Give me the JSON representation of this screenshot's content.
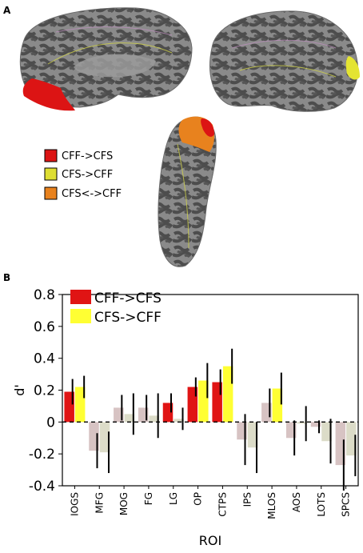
{
  "panels": {
    "a_label": "A",
    "b_label": "B"
  },
  "brain_legend": [
    {
      "label": "CFF->CFS",
      "color": "#e01010"
    },
    {
      "label": "CFS->CFF",
      "color": "#dede32"
    },
    {
      "label": "CFS<->CFF",
      "color": "#e8821e"
    }
  ],
  "chart_data": {
    "type": "bar",
    "categories": [
      "IOGS",
      "MFG",
      "MOG",
      "FG",
      "LG",
      "OP",
      "CTPS",
      "IPS",
      "MLOS",
      "AOS",
      "LOTS",
      "SPCS"
    ],
    "series": [
      {
        "name": "CFF->CFS",
        "color": "#e01414",
        "faded_color": "#d7c3c3",
        "values": [
          0.19,
          -0.18,
          0.09,
          0.09,
          0.12,
          0.22,
          0.25,
          -0.11,
          0.12,
          -0.1,
          -0.03,
          -0.27
        ],
        "errors": [
          0.08,
          0.11,
          0.08,
          0.08,
          0.06,
          0.06,
          0.08,
          0.16,
          0.09,
          0.11,
          0.04,
          0.16
        ],
        "highlighted": [
          true,
          false,
          false,
          false,
          true,
          true,
          true,
          false,
          false,
          false,
          false,
          false
        ]
      },
      {
        "name": "CFS->CFF",
        "color": "#ffff33",
        "faded_color": "#dcdcc8",
        "values": [
          0.22,
          -0.19,
          0.05,
          0.04,
          0.02,
          0.26,
          0.35,
          -0.16,
          0.21,
          -0.01,
          -0.12,
          -0.21
        ],
        "errors": [
          0.07,
          0.13,
          0.13,
          0.14,
          0.07,
          0.11,
          0.11,
          0.16,
          0.1,
          0.11,
          0.14,
          0.13
        ],
        "highlighted": [
          true,
          false,
          false,
          false,
          false,
          true,
          true,
          false,
          true,
          false,
          false,
          false
        ]
      }
    ],
    "ylabel": "d'",
    "xlabel": "ROI",
    "ylim": [
      -0.4,
      0.8
    ],
    "yticks": [
      "0.8",
      "0.6",
      "0.4",
      "0.2",
      "0",
      "-0.2",
      "-0.4"
    ],
    "legend_position": "top-left",
    "zero_line": "dashed"
  }
}
